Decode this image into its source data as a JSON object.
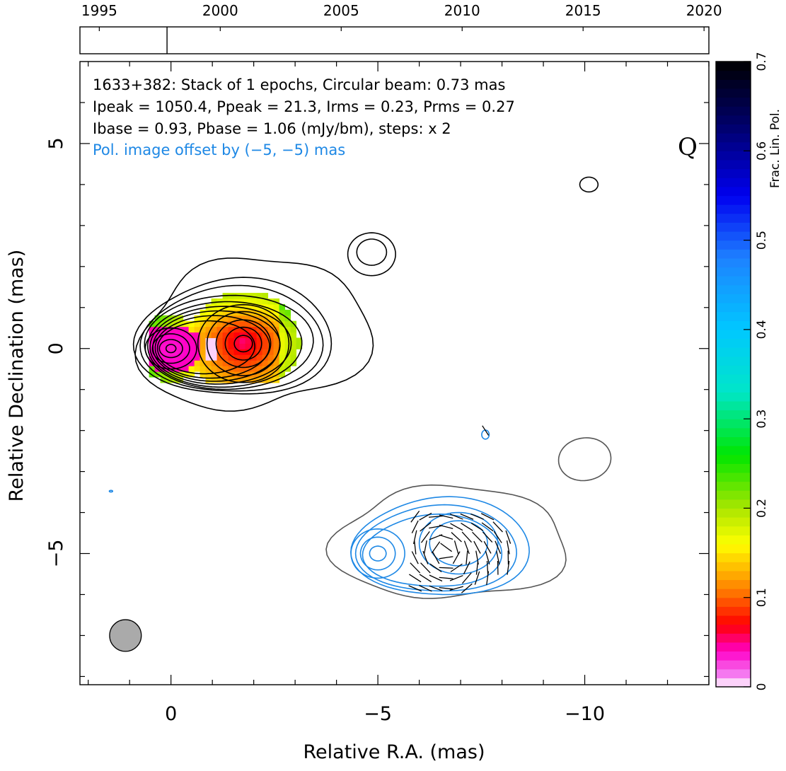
{
  "chart_data": {
    "type": "heatmap",
    "source": "1633+382",
    "annotations": [
      "1633+382: Stack of 1 epochs, Circular beam: 0.73 mas",
      "Ipeak = 1050.4, Ppeak = 21.3, Irms = 0.23, Prms = 0.27",
      "Ibase = 0.93, Pbase = 1.06 (mJy/bm), steps: x 2",
      "Pol. image offset by (−5, −5) mas"
    ],
    "band_label": "Q",
    "xlabel": "Relative R.A. (mas)",
    "ylabel": "Relative Declination (mas)",
    "xlim": [
      2.2,
      -13.0
    ],
    "ylim": [
      -8.2,
      7.0
    ],
    "x_ticks": [
      {
        "value": 0,
        "label": "0"
      },
      {
        "value": -5,
        "label": "−5"
      },
      {
        "value": -10,
        "label": "−10"
      }
    ],
    "y_ticks": [
      {
        "value": 5,
        "label": "5"
      },
      {
        "value": 0,
        "label": "0"
      },
      {
        "value": -5,
        "label": "−5"
      }
    ],
    "colorbar": {
      "label": "Frac. Lin. Pol.",
      "range": [
        0,
        0.7
      ],
      "ticks": [
        {
          "value": 0,
          "label": "0"
        },
        {
          "value": 0.1,
          "label": "0.1"
        },
        {
          "value": 0.2,
          "label": "0.2"
        },
        {
          "value": 0.3,
          "label": "0.3"
        },
        {
          "value": 0.4,
          "label": "0.4"
        },
        {
          "value": 0.5,
          "label": "0.5"
        },
        {
          "value": 0.6,
          "label": "0.6"
        },
        {
          "value": 0.7,
          "label": "0.7"
        }
      ]
    },
    "timeline": {
      "range": [
        1994.2,
        2020.2
      ],
      "ticks": [
        {
          "value": 1995,
          "label": "1995"
        },
        {
          "value": 2000,
          "label": "2000"
        },
        {
          "value": 2005,
          "label": "2005"
        },
        {
          "value": 2010,
          "label": "2010"
        },
        {
          "value": 2015,
          "label": "2015"
        },
        {
          "value": 2020,
          "label": "2020"
        }
      ],
      "epochs": [
        1997.8
      ]
    },
    "beam_diameter_mas": 0.73,
    "beam_center": [
      1.1,
      -7.0
    ],
    "core_position": [
      0,
      0
    ],
    "pol_offset": [
      -5,
      -5
    ],
    "colors": {
      "intensity_contours": "#000000",
      "offset_total_intensity_contour": "#555555",
      "pol_contours": "#1e88e5",
      "pol_text": "#1e88e5",
      "beam_fill": "#aaaaaa"
    }
  }
}
